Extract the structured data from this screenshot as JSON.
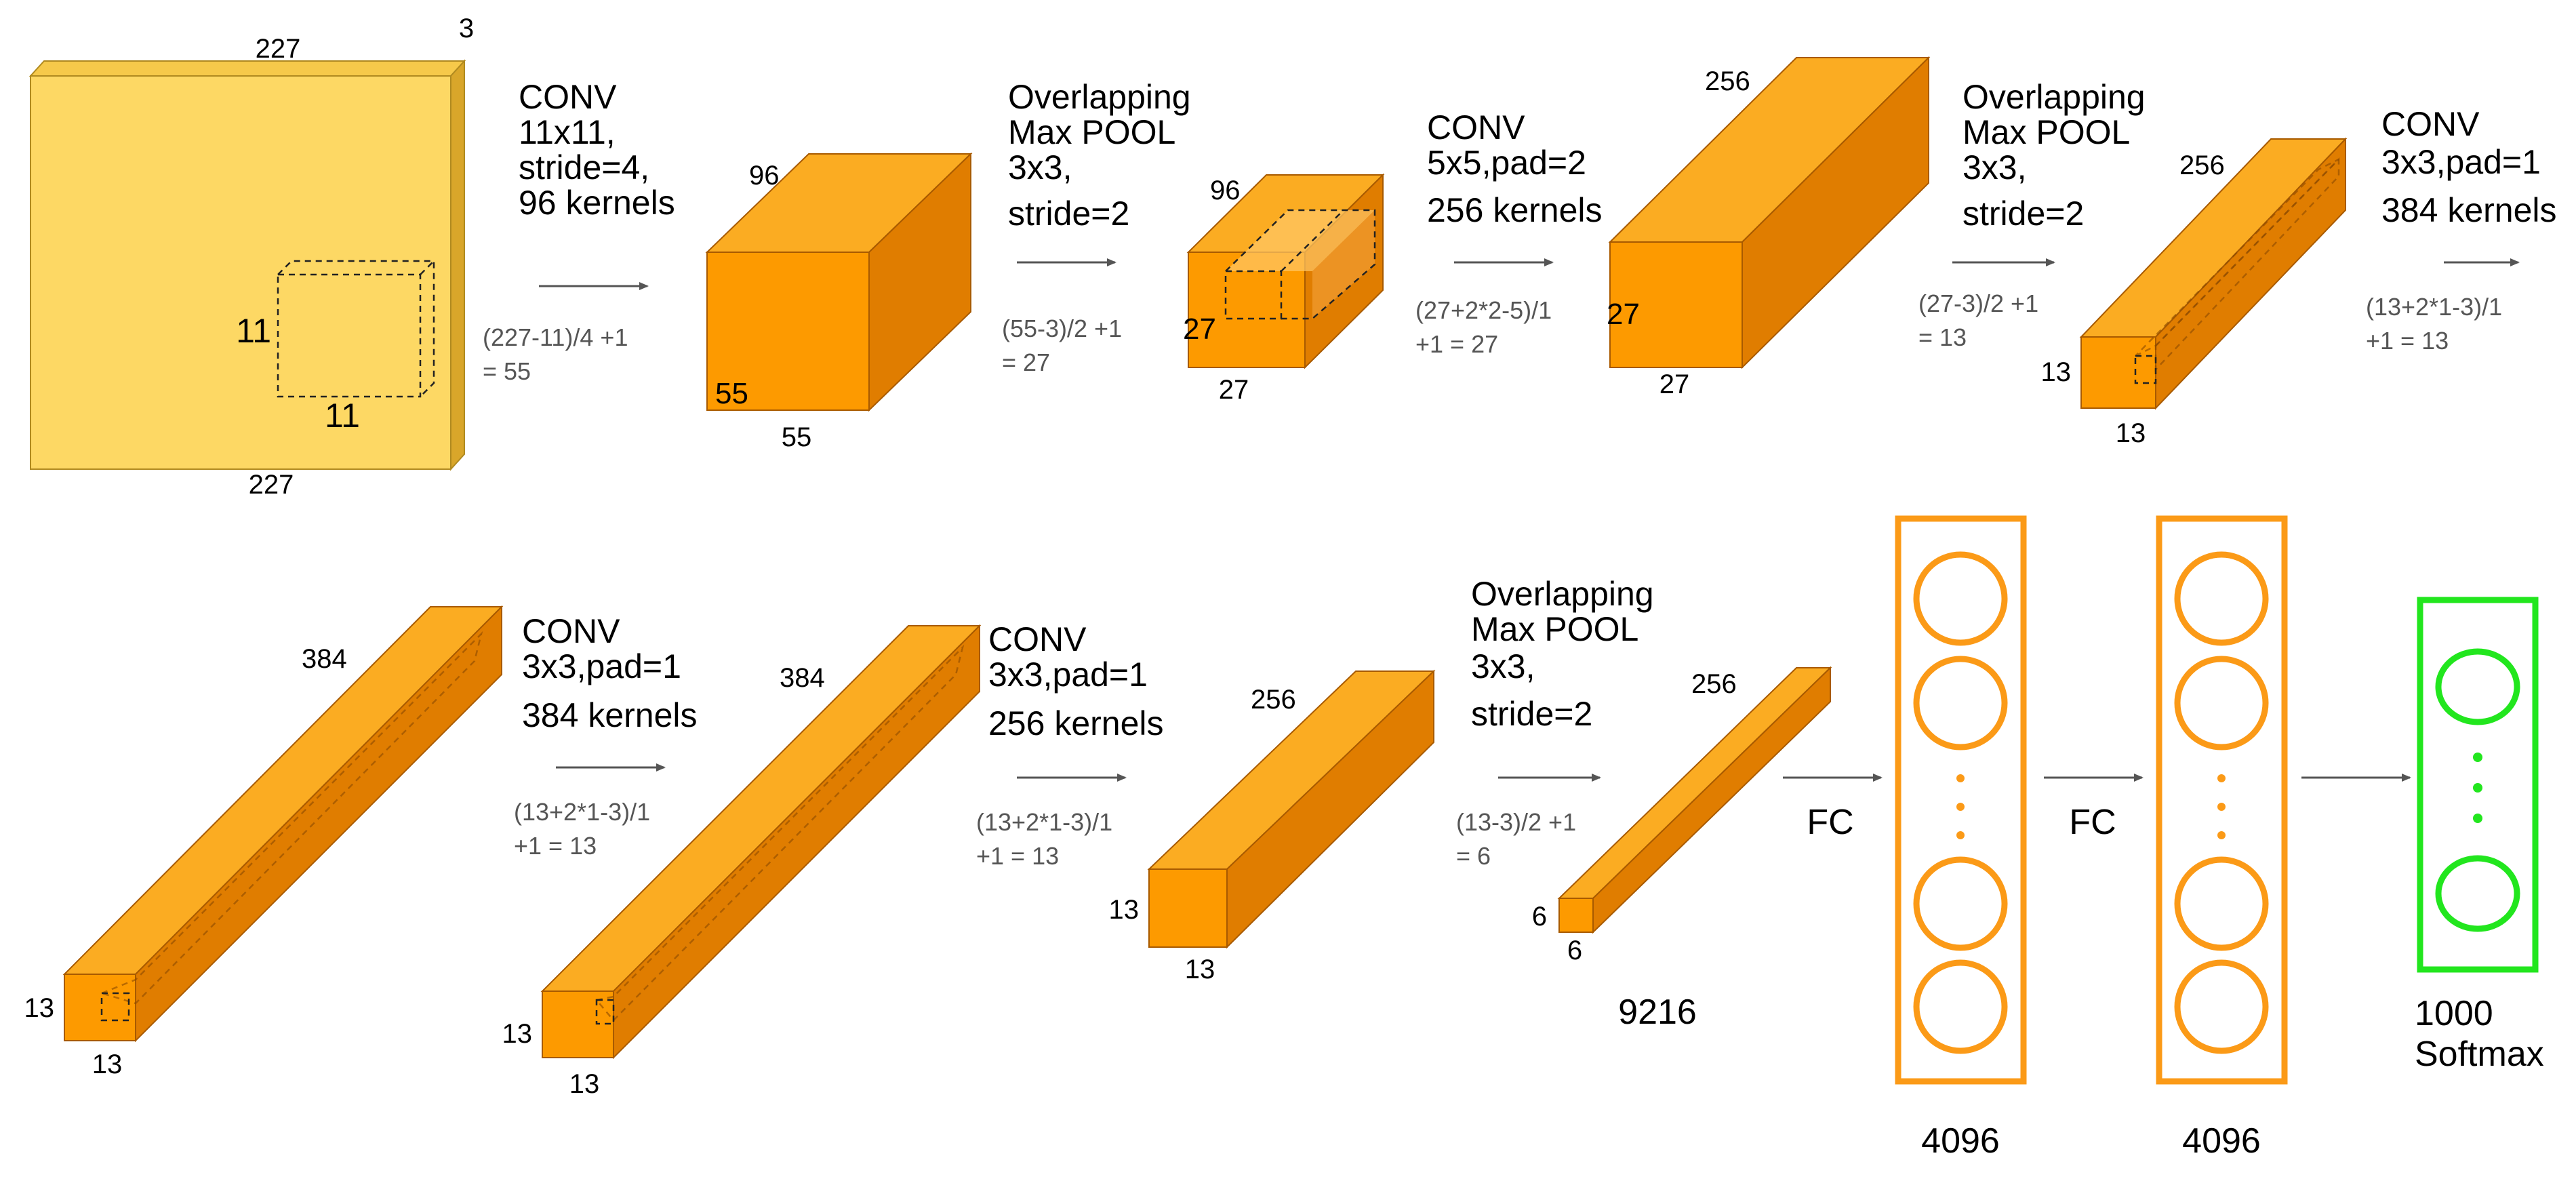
{
  "colors": {
    "input_front": "#fdd864",
    "input_top": "#f6c94a",
    "input_side": "#d9a62a",
    "block_front": "#fd9a00",
    "block_top": "#fbac22",
    "block_side": "#e07d00",
    "fc_orange": "#fb9a17",
    "softmax_green": "#22e61e"
  },
  "row1": {
    "input": {
      "w": "227",
      "h": "227",
      "d": "3",
      "kernel_v": "11",
      "kernel_h": "11"
    },
    "op1": {
      "lines": [
        "CONV",
        "11x11,",
        "stride=4,",
        "96 kernels"
      ],
      "calc": [
        "(227-11)/4 +1",
        "= 55"
      ]
    },
    "block1": {
      "depth": "96",
      "h": "55",
      "w": "55"
    },
    "op2": {
      "lines": [
        "Overlapping",
        "Max POOL",
        "3x3,",
        "stride=2"
      ],
      "calc": [
        "(55-3)/2 +1",
        "= 27"
      ]
    },
    "block2": {
      "depth": "96",
      "h": "27",
      "w": "27"
    },
    "op3": {
      "lines": [
        "CONV",
        "5x5,pad=2",
        "256 kernels"
      ],
      "calc": [
        "(27+2*2-5)/1",
        "+1  = 27"
      ]
    },
    "block3": {
      "depth": "256",
      "h": "27",
      "w": "27"
    },
    "op4": {
      "lines": [
        "Overlapping",
        "Max POOL",
        "3x3,",
        "stride=2"
      ],
      "calc": [
        "(27-3)/2 +1",
        "= 13"
      ]
    },
    "block4": {
      "depth": "256",
      "h": "13",
      "w": "13"
    },
    "op5": {
      "lines": [
        "CONV",
        "3x3,pad=1",
        "384 kernels"
      ],
      "calc": [
        "(13+2*1-3)/1",
        "+1  = 13"
      ]
    }
  },
  "row2": {
    "block5": {
      "depth": "384",
      "h": "13",
      "w": "13"
    },
    "op6": {
      "lines": [
        "CONV",
        "3x3,pad=1",
        "384 kernels"
      ],
      "calc": [
        "(13+2*1-3)/1",
        "+1  = 13"
      ]
    },
    "block6": {
      "depth": "384",
      "h": "13",
      "w": "13"
    },
    "op7": {
      "lines": [
        "CONV",
        "3x3,pad=1",
        "256 kernels"
      ],
      "calc": [
        "(13+2*1-3)/1",
        "+1  = 13"
      ]
    },
    "block7": {
      "depth": "256",
      "h": "13",
      "w": "13"
    },
    "op8": {
      "lines": [
        "Overlapping",
        "Max POOL",
        "3x3,",
        "stride=2"
      ],
      "calc": [
        "(13-3)/2 +1",
        "= 6"
      ]
    },
    "block8": {
      "depth": "256",
      "h": "6",
      "w": "6"
    },
    "flat_label": "9216",
    "fc_label_1": "FC",
    "fc_label_2": "FC",
    "fc1_label": "4096",
    "fc2_label": "4096",
    "softmax_label": [
      "1000",
      "Softmax"
    ]
  }
}
